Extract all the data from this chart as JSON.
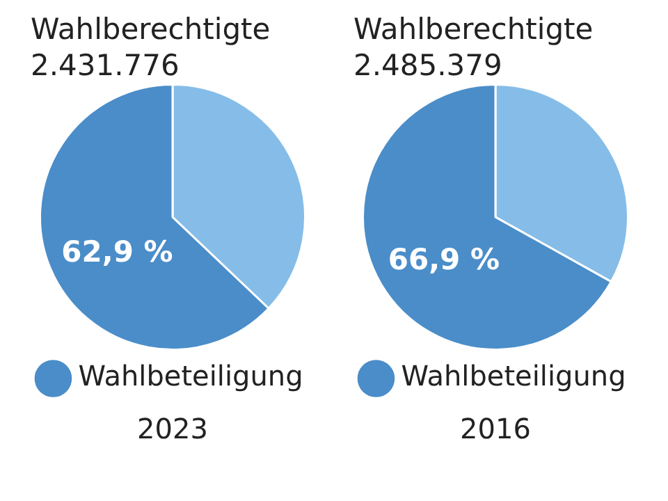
{
  "chart_data": [
    {
      "type": "pie",
      "title": "Wahlberechtigte",
      "subtitle": "2.431.776",
      "xlabel": "2023",
      "categories": [
        null,
        "Wahlbeteiligung"
      ],
      "values": [
        37.1,
        62.9
      ],
      "colors": [
        "#85bde8",
        "#4a8dc9"
      ],
      "value_labels": [
        null,
        "62,9 %"
      ],
      "legend": "bottom"
    },
    {
      "type": "pie",
      "title": "Wahlberechtigte",
      "subtitle": "2.485.379",
      "xlabel": "2016",
      "categories": [
        null,
        "Wahlbeteiligung"
      ],
      "values": [
        33.1,
        66.9
      ],
      "colors": [
        "#85bde8",
        "#4a8dc9"
      ],
      "value_labels": [
        null,
        "66,9 %"
      ],
      "legend": "bottom"
    }
  ]
}
